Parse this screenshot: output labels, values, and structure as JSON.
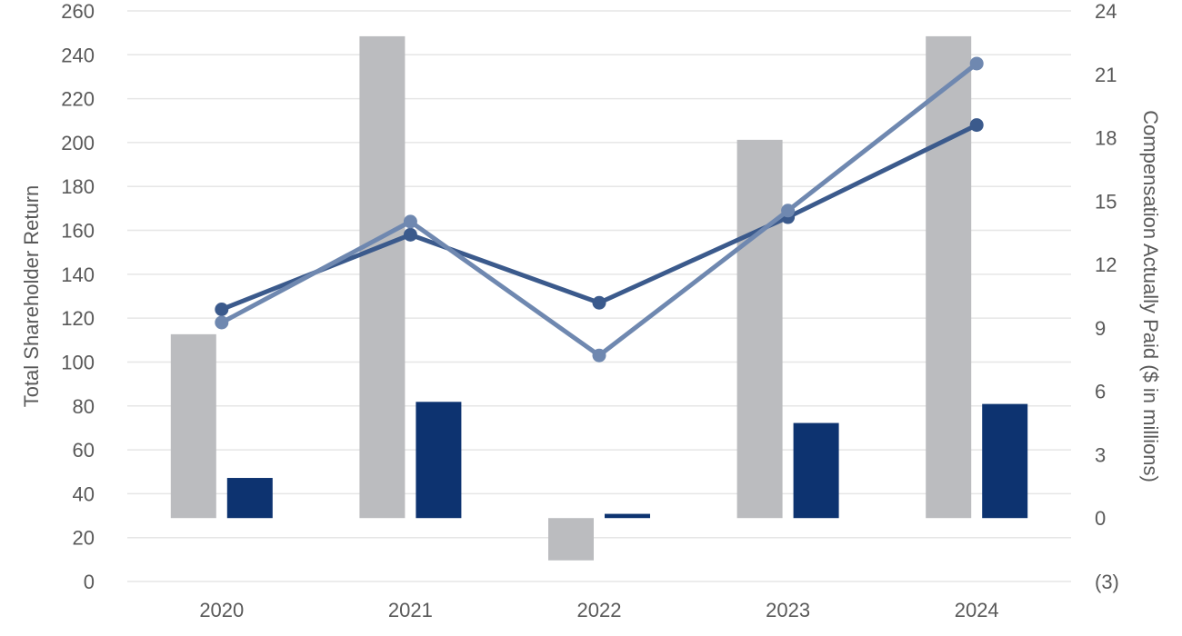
{
  "chart_data": {
    "type": "bar",
    "title": "",
    "categories": [
      "2020",
      "2021",
      "2022",
      "2023",
      "2024"
    ],
    "ylabel": "Total Shareholder Return",
    "y2label": "Compensation Actually Paid ($ in millions)",
    "ylim": [
      0,
      260
    ],
    "y2lim": [
      -3,
      24
    ],
    "yticks": [
      "0",
      "20",
      "40",
      "60",
      "80",
      "100",
      "120",
      "140",
      "160",
      "180",
      "200",
      "220",
      "240",
      "260"
    ],
    "y2ticks": [
      "(3)",
      "0",
      "3",
      "6",
      "9",
      "12",
      "15",
      "18",
      "21",
      "24"
    ],
    "grid": true,
    "legend": "none",
    "series": [
      {
        "kind": "bar",
        "axis": "right",
        "color": "#bbbcbf",
        "values": [
          8.7,
          22.8,
          -2.0,
          17.9,
          22.8
        ]
      },
      {
        "kind": "bar",
        "axis": "right",
        "color": "#0d3370",
        "values": [
          1.9,
          5.5,
          0.2,
          4.5,
          5.4
        ]
      },
      {
        "kind": "line",
        "axis": "left",
        "color": "#3b5a8c",
        "values": [
          124,
          158,
          127,
          166,
          208
        ]
      },
      {
        "kind": "line",
        "axis": "left",
        "color": "#6f88b0",
        "values": [
          118,
          164,
          103,
          169,
          236
        ]
      }
    ]
  }
}
